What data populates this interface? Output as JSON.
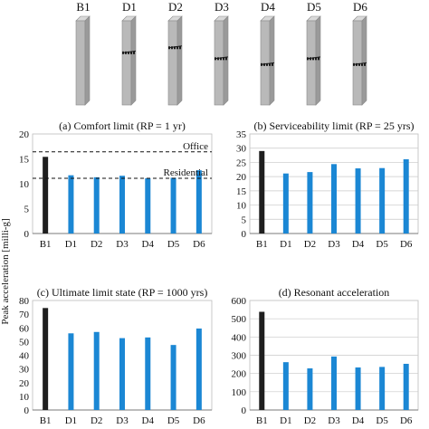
{
  "columns": {
    "labels": [
      "B1",
      "D1",
      "D2",
      "D3",
      "D4",
      "D5",
      "D6"
    ],
    "damper_rows": [
      [],
      [
        0.38
      ],
      [
        0.32
      ],
      [
        0.45
      ],
      [
        0.52
      ],
      [
        0.45
      ],
      [
        0.52
      ]
    ]
  },
  "ylabel_shared": "Peak acceleration [milli-g]",
  "colors": {
    "baseline": "#1f1f1f",
    "damped": "#1b87d4",
    "grid": "#c8c8c8",
    "axis": "#7a7a7a"
  },
  "chart_data": [
    {
      "type": "bar",
      "title": "(a) Comfort limit (RP = 1 yr)",
      "categories": [
        "B1",
        "D1",
        "D2",
        "D3",
        "D4",
        "D5",
        "D6"
      ],
      "values": [
        15.4,
        11.7,
        11.3,
        11.6,
        11.1,
        11.2,
        12.7
      ],
      "ylim": [
        0,
        20
      ],
      "yticks": [
        0,
        5,
        10,
        15,
        20
      ],
      "grid": false,
      "reference_lines": [
        {
          "label": "Office",
          "value": 16.4
        },
        {
          "label": "Residential",
          "value": 11.1
        }
      ]
    },
    {
      "type": "bar",
      "title": "(b) Serviceability limit (RP = 25 yrs)",
      "categories": [
        "B1",
        "D1",
        "D2",
        "D3",
        "D4",
        "D5",
        "D6"
      ],
      "values": [
        29.0,
        21.1,
        21.6,
        24.4,
        22.9,
        23.0,
        26.1
      ],
      "ylim": [
        0,
        35
      ],
      "yticks": [
        0,
        5,
        10,
        15,
        20,
        25,
        30,
        35
      ],
      "grid": true
    },
    {
      "type": "bar",
      "title": "(c) Ultimate limit state (RP = 1000 yrs)",
      "categories": [
        "B1",
        "D1",
        "D2",
        "D3",
        "D4",
        "D5",
        "D6"
      ],
      "values": [
        74.5,
        56.0,
        57.0,
        52.5,
        53.0,
        47.5,
        59.5
      ],
      "ylim": [
        0,
        80
      ],
      "yticks": [
        0,
        10,
        20,
        30,
        40,
        50,
        60,
        70,
        80
      ],
      "grid": false
    },
    {
      "type": "bar",
      "title": "(d) Resonant acceleration",
      "categories": [
        "B1",
        "D1",
        "D2",
        "D3",
        "D4",
        "D5",
        "D6"
      ],
      "values": [
        538,
        262,
        228,
        293,
        233,
        236,
        253
      ],
      "ylim": [
        0,
        600
      ],
      "yticks": [
        0,
        100,
        200,
        300,
        400,
        500,
        600
      ],
      "grid": true
    }
  ]
}
